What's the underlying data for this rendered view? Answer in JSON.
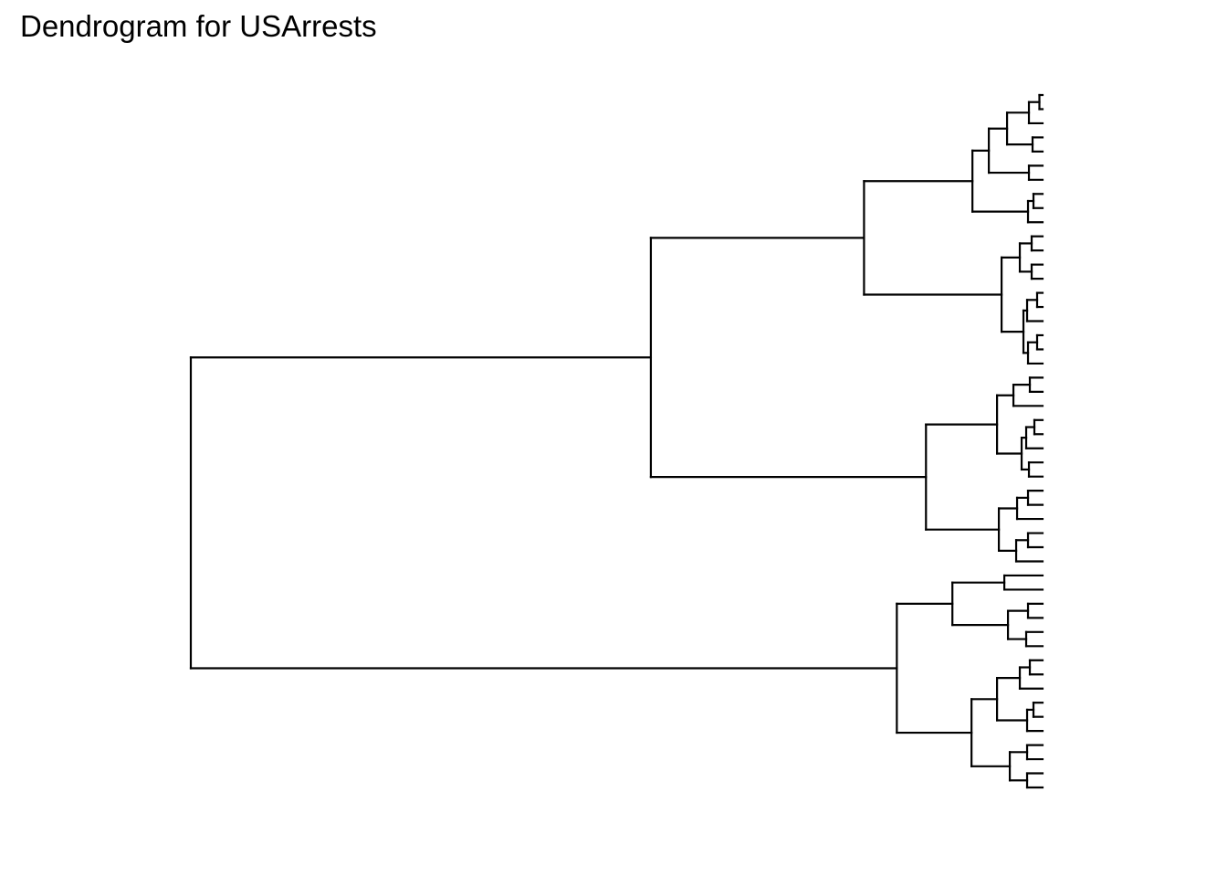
{
  "title": "Dendrogram for USArrests",
  "chart_data": {
    "type": "dendrogram",
    "title": "Dendrogram for USArrests",
    "orientation": "horizontal",
    "leaves_side": "right",
    "leaf_labels_shown": false,
    "axes_shown": false,
    "grid": false,
    "line_color": "#000000",
    "leaf_count": 50,
    "height_range": [
      0,
      1
    ],
    "tree": {
      "h": 0.935,
      "children": [
        {
          "h": 0.43,
          "children": [
            {
              "h": 0.196,
              "children": [
                {
                  "h": 0.077,
                  "children": [
                    {
                      "h": 0.059,
                      "children": [
                        {
                          "h": 0.039,
                          "children": [
                            {
                              "h": 0.015,
                              "children": [
                                {
                                  "h": 0.0035,
                                  "children": [
                                    0,
                                    0
                                  ]
                                },
                                0
                              ]
                            },
                            {
                              "h": 0.011,
                              "children": [
                                0,
                                0
                              ]
                            }
                          ]
                        },
                        {
                          "h": 0.015,
                          "children": [
                            0,
                            0
                          ]
                        }
                      ]
                    },
                    {
                      "h": 0.016,
                      "children": [
                        {
                          "h": 0.01,
                          "children": [
                            0,
                            0
                          ]
                        },
                        0
                      ]
                    }
                  ]
                },
                {
                  "h": 0.045,
                  "children": [
                    {
                      "h": 0.025,
                      "children": [
                        {
                          "h": 0.012,
                          "children": [
                            0,
                            0
                          ]
                        },
                        {
                          "h": 0.012,
                          "children": [
                            0,
                            0
                          ]
                        }
                      ]
                    },
                    {
                      "h": 0.021,
                      "children": [
                        {
                          "h": 0.017,
                          "children": [
                            {
                              "h": 0.006,
                              "children": [
                                0,
                                0
                              ]
                            },
                            0
                          ]
                        },
                        {
                          "h": 0.016,
                          "children": [
                            {
                              "h": 0.006,
                              "children": [
                                0,
                                0
                              ]
                            },
                            0
                          ]
                        }
                      ]
                    }
                  ]
                }
              ]
            },
            {
              "h": 0.128,
              "children": [
                {
                  "h": 0.05,
                  "children": [
                    {
                      "h": 0.032,
                      "children": [
                        {
                          "h": 0.014,
                          "children": [
                            0,
                            0
                          ]
                        },
                        0
                      ]
                    },
                    {
                      "h": 0.023,
                      "children": [
                        {
                          "h": 0.018,
                          "children": [
                            {
                              "h": 0.009,
                              "children": [
                                0,
                                0
                              ]
                            },
                            0
                          ]
                        },
                        {
                          "h": 0.015,
                          "children": [
                            0,
                            0
                          ]
                        }
                      ]
                    }
                  ]
                },
                {
                  "h": 0.048,
                  "children": [
                    {
                      "h": 0.028,
                      "children": [
                        {
                          "h": 0.016,
                          "children": [
                            0,
                            0
                          ]
                        },
                        0
                      ]
                    },
                    {
                      "h": 0.029,
                      "children": [
                        {
                          "h": 0.016,
                          "children": [
                            0,
                            0
                          ]
                        },
                        0
                      ]
                    }
                  ]
                }
              ]
            }
          ]
        },
        {
          "h": 0.16,
          "children": [
            {
              "h": 0.099,
              "children": [
                {
                  "h": 0.042,
                  "children": [
                    0,
                    0
                  ]
                },
                {
                  "h": 0.038,
                  "children": [
                    {
                      "h": 0.016,
                      "children": [
                        0,
                        0
                      ]
                    },
                    {
                      "h": 0.018,
                      "children": [
                        0,
                        0
                      ]
                    }
                  ]
                }
              ]
            },
            {
              "h": 0.078,
              "children": [
                {
                  "h": 0.05,
                  "children": [
                    {
                      "h": 0.025,
                      "children": [
                        {
                          "h": 0.014,
                          "children": [
                            0,
                            0
                          ]
                        },
                        0
                      ]
                    },
                    {
                      "h": 0.017,
                      "children": [
                        {
                          "h": 0.01,
                          "children": [
                            0,
                            0
                          ]
                        },
                        0
                      ]
                    }
                  ]
                },
                {
                  "h": 0.036,
                  "children": [
                    {
                      "h": 0.017,
                      "children": [
                        0,
                        0
                      ]
                    },
                    {
                      "h": 0.017,
                      "children": [
                        0,
                        0
                      ]
                    }
                  ]
                }
              ]
            }
          ]
        }
      ]
    }
  }
}
